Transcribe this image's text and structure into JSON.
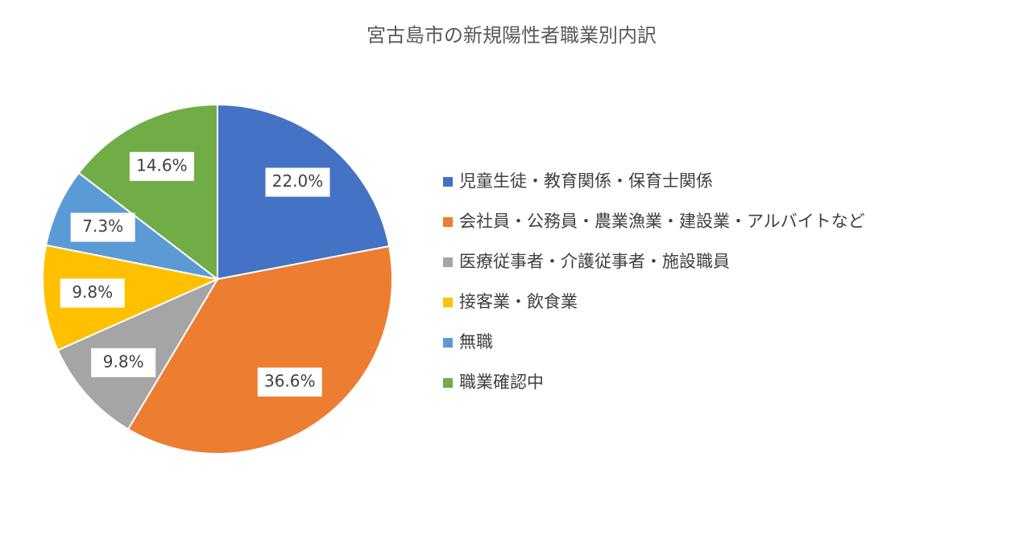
{
  "chart_data": {
    "type": "pie",
    "title": "宮古島市の新規陽性者職業別内訳",
    "categories": [
      "児童生徒・教育関係・保育士関係",
      "会社員・公務員・農業漁業・建設業・アルバイトなど",
      "医療従事者・介護従事者・施設職員",
      "接客業・飲食業",
      "無職",
      "職業確認中"
    ],
    "values": [
      22.0,
      36.6,
      9.8,
      9.8,
      7.3,
      14.6
    ],
    "value_labels": [
      "22.0%",
      "36.6%",
      "9.8%",
      "9.8%",
      "7.3%",
      "14.6%"
    ],
    "colors": [
      "#4472c4",
      "#ed7d31",
      "#a5a5a5",
      "#ffc000",
      "#5b9bd5",
      "#70ad47"
    ],
    "legend": "right"
  }
}
